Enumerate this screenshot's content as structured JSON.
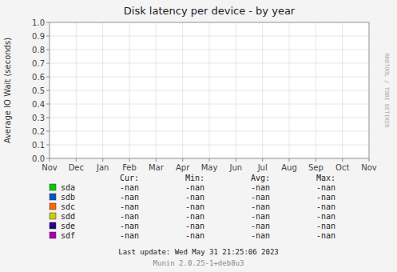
{
  "chart_data": {
    "type": "line",
    "title": "Disk latency per device - by year",
    "ylabel": "Average IO Wait (seconds)",
    "categories": [
      "Nov",
      "Dec",
      "Jan",
      "Feb",
      "Mar",
      "Apr",
      "May",
      "Jun",
      "Jul",
      "Aug",
      "Sep",
      "Oct",
      "Nov"
    ],
    "ylim": [
      0.0,
      1.0
    ],
    "yticks": [
      {
        "value": 0.0,
        "label": "0.0"
      },
      0.1,
      0.2,
      0.3,
      0.4,
      0.5,
      0.6,
      0.7,
      0.8,
      0.9,
      {
        "value": 1.0,
        "label": "1.0"
      }
    ],
    "grid": true,
    "stat_labels": [
      "Cur:",
      "Min:",
      "Avg:",
      "Max:"
    ],
    "series": [
      {
        "name": "sda",
        "color": "#00cc00",
        "values": [
          null,
          null,
          null,
          null,
          null,
          null,
          null,
          null,
          null,
          null,
          null,
          null,
          null
        ],
        "stats": [
          "-nan",
          "-nan",
          "-nan",
          "-nan"
        ]
      },
      {
        "name": "sdb",
        "color": "#0055cc",
        "values": [
          null,
          null,
          null,
          null,
          null,
          null,
          null,
          null,
          null,
          null,
          null,
          null,
          null
        ],
        "stats": [
          "-nan",
          "-nan",
          "-nan",
          "-nan"
        ]
      },
      {
        "name": "sdc",
        "color": "#ff6600",
        "values": [
          null,
          null,
          null,
          null,
          null,
          null,
          null,
          null,
          null,
          null,
          null,
          null,
          null
        ],
        "stats": [
          "-nan",
          "-nan",
          "-nan",
          "-nan"
        ]
      },
      {
        "name": "sdd",
        "color": "#cccc00",
        "values": [
          null,
          null,
          null,
          null,
          null,
          null,
          null,
          null,
          null,
          null,
          null,
          null,
          null
        ],
        "stats": [
          "-nan",
          "-nan",
          "-nan",
          "-nan"
        ]
      },
      {
        "name": "sde",
        "color": "#220088",
        "values": [
          null,
          null,
          null,
          null,
          null,
          null,
          null,
          null,
          null,
          null,
          null,
          null,
          null
        ],
        "stats": [
          "-nan",
          "-nan",
          "-nan",
          "-nan"
        ]
      },
      {
        "name": "sdf",
        "color": "#aa00aa",
        "values": [
          null,
          null,
          null,
          null,
          null,
          null,
          null,
          null,
          null,
          null,
          null,
          null,
          null
        ],
        "stats": [
          "-nan",
          "-nan",
          "-nan",
          "-nan"
        ]
      }
    ],
    "annotations": [
      "Last update: Wed May 31 21:25:06 2023",
      "Munin 2.0.25-1+deb8u3",
      "RRDTOOL / TOBI OETIKER"
    ]
  }
}
